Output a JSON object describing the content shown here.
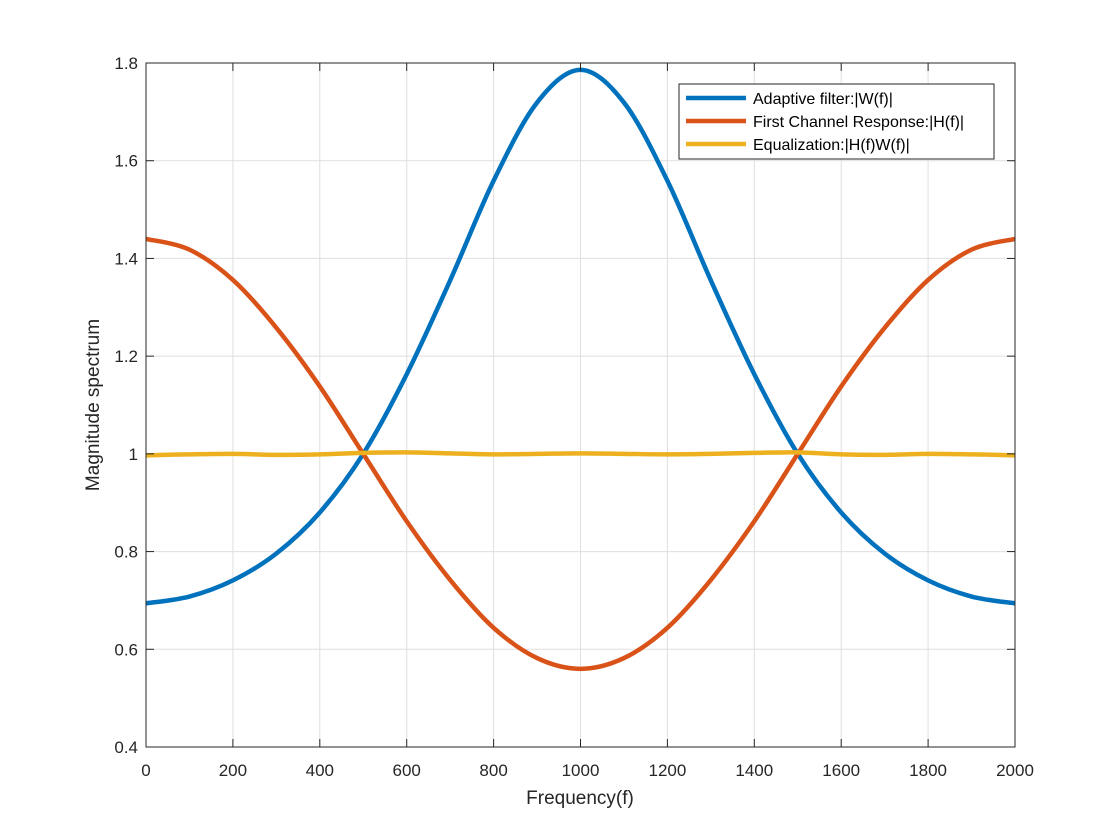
{
  "chart_data": {
    "type": "line",
    "title": "",
    "xlabel": "Frequency(f)",
    "ylabel": "Magnitude spectrum",
    "xlim": [
      0,
      2000
    ],
    "ylim": [
      0.4,
      1.8
    ],
    "xticks": [
      0,
      200,
      400,
      600,
      800,
      1000,
      1200,
      1400,
      1600,
      1800,
      2000
    ],
    "xtick_labels": [
      "0",
      "200",
      "400",
      "600",
      "800",
      "1000",
      "1200",
      "1400",
      "1600",
      "1800",
      "2000"
    ],
    "yticks": [
      0.4,
      0.6,
      0.8,
      1.0,
      1.2,
      1.4,
      1.6,
      1.8
    ],
    "ytick_labels": [
      "0.4",
      "0.6",
      "0.8",
      "1",
      "1.2",
      "1.4",
      "1.6",
      "1.8"
    ],
    "grid": true,
    "legend_position": "top-right",
    "x": [
      0,
      100,
      200,
      300,
      400,
      500,
      600,
      700,
      800,
      900,
      1000,
      1100,
      1200,
      1300,
      1400,
      1500,
      1600,
      1700,
      1800,
      1900,
      2000
    ],
    "series": [
      {
        "name": "Adaptive filter:|W(f)|",
        "color": "#0072BD",
        "values": [
          0.694,
          0.708,
          0.741,
          0.796,
          0.88,
          1.0,
          1.163,
          1.355,
          1.559,
          1.719,
          1.786,
          1.719,
          1.559,
          1.355,
          1.163,
          1.0,
          0.88,
          0.796,
          0.741,
          0.708,
          0.694
        ]
      },
      {
        "name": "First Channel Response:|H(f)|",
        "color": "#D95319",
        "values": [
          1.44,
          1.418,
          1.356,
          1.258,
          1.138,
          1.0,
          0.862,
          0.742,
          0.644,
          0.582,
          0.56,
          0.582,
          0.644,
          0.742,
          0.862,
          1.0,
          1.138,
          1.258,
          1.356,
          1.418,
          1.44
        ]
      },
      {
        "name": "Equalization:|H(f)W(f)|",
        "color": "#EDB120",
        "values": [
          0.997,
          0.999,
          1.0,
          0.998,
          0.999,
          1.002,
          1.003,
          1.001,
          0.999,
          1.0,
          1.001,
          1.0,
          0.999,
          1.0,
          1.002,
          1.003,
          0.999,
          0.998,
          1.0,
          0.999,
          0.997
        ]
      }
    ]
  }
}
